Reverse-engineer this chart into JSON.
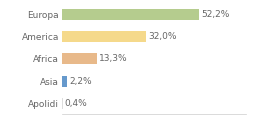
{
  "categories": [
    "Europa",
    "America",
    "Africa",
    "Asia",
    "Apolidi"
  ],
  "values": [
    52.2,
    32.0,
    13.3,
    2.2,
    0.4
  ],
  "labels": [
    "52,2%",
    "32,0%",
    "13,3%",
    "2,2%",
    "0,4%"
  ],
  "colors": [
    "#b5cc8e",
    "#f5d98b",
    "#e8b98a",
    "#6699cc",
    "#dddddd"
  ],
  "background_color": "#ffffff",
  "xlim": [
    0,
    70
  ],
  "bar_height": 0.5,
  "label_fontsize": 6.5,
  "tick_fontsize": 6.5,
  "text_color": "#666666"
}
